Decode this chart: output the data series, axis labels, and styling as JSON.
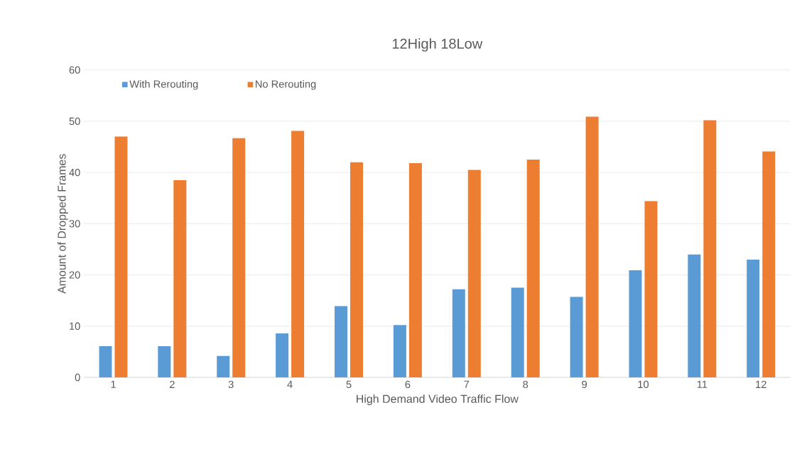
{
  "chart_data": {
    "type": "bar",
    "title": "12High 18Low",
    "xlabel": "High Demand Video Traffic Flow",
    "ylabel": "Amount of Dropped Frames",
    "categories": [
      "1",
      "2",
      "3",
      "4",
      "5",
      "6",
      "7",
      "8",
      "9",
      "10",
      "11",
      "12"
    ],
    "series": [
      {
        "name": "With Rerouting",
        "color": "#5b9bd5",
        "values": [
          6.1,
          6.1,
          4.2,
          8.6,
          13.9,
          10.2,
          17.2,
          17.5,
          15.7,
          20.9,
          24.0,
          23.0
        ]
      },
      {
        "name": "No Rerouting",
        "color": "#ed7d31",
        "values": [
          47.0,
          38.5,
          46.7,
          48.1,
          42.0,
          41.8,
          40.5,
          42.5,
          50.9,
          34.4,
          50.2,
          44.1
        ]
      }
    ],
    "ylim": [
      0,
      60
    ],
    "yticks": [
      0,
      10,
      20,
      30,
      40,
      50,
      60
    ],
    "grid": "y",
    "legend": "top left"
  }
}
